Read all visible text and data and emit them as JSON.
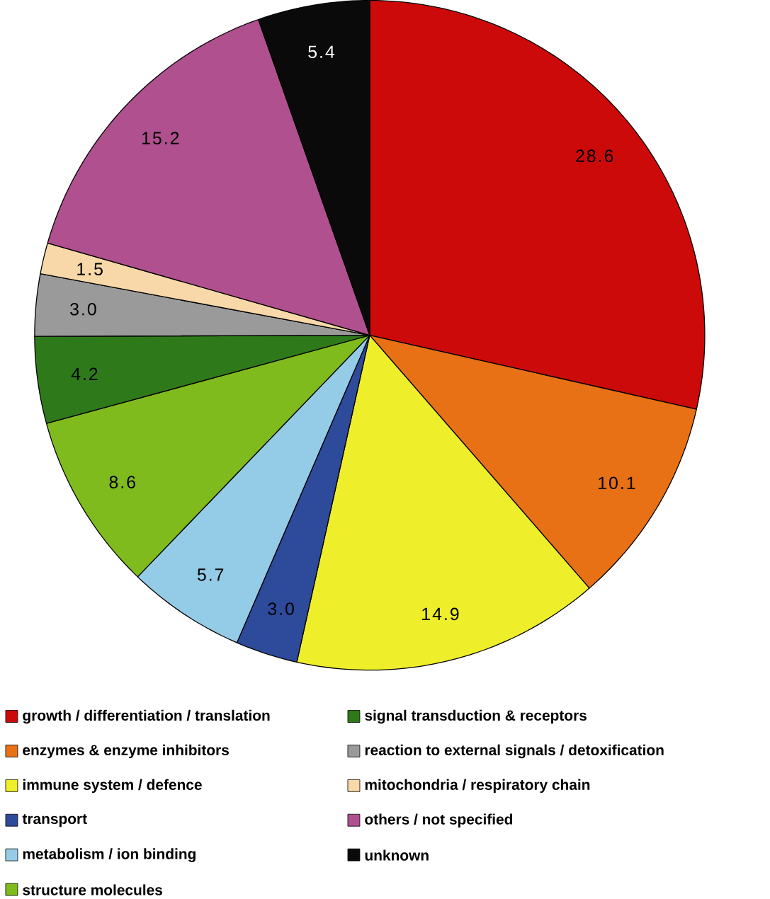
{
  "chart_data": {
    "type": "pie",
    "categories": [
      "growth / differentiation / translation",
      "enzymes & enzyme inhibitors",
      "immune system / defence",
      "transport",
      "metabolism / ion binding",
      "structure molecules",
      "signal transduction & receptors",
      "reaction to external signals / detoxification",
      "mitochondria / respiratory chain",
      "others / not specified",
      "unknown"
    ],
    "values": [
      28.6,
      10.1,
      14.9,
      3.0,
      5.7,
      8.6,
      4.2,
      3.0,
      1.5,
      15.2,
      5.4
    ],
    "value_labels": [
      "28.6",
      "10.1",
      "14.9",
      "3.0",
      "5.7",
      "8.6",
      "4.2",
      "3.0",
      "1.5",
      "15.2",
      "5.4"
    ],
    "colors": [
      "#cc0a0a",
      "#e87015",
      "#eeee2a",
      "#2e4a9a",
      "#94cce8",
      "#80bb1e",
      "#2e7a1a",
      "#9a9a9a",
      "#f8d8a8",
      "#b0508f",
      "#0a0a0a"
    ],
    "legend": "bottom"
  }
}
